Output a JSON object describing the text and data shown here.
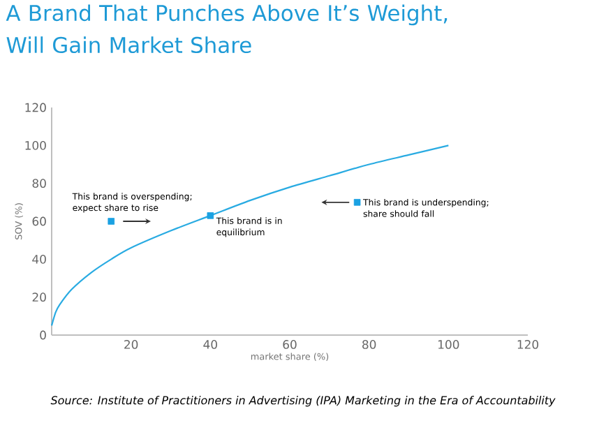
{
  "chart_data": {
    "type": "line",
    "title": "A Brand That Punches Above It’s Weight, Will Gain Market Share",
    "xlabel": "market share (%)",
    "ylabel": "SOV (%)",
    "xlim": [
      0,
      120
    ],
    "xticks": [
      20,
      40,
      60,
      80,
      100,
      120
    ],
    "ylim": [
      0,
      120
    ],
    "yticks": [
      0,
      20,
      40,
      60,
      80,
      100,
      120
    ],
    "series": [
      {
        "type": "line",
        "color": "#29abe2",
        "marker": "none",
        "x": [
          0,
          1,
          2,
          5,
          10,
          15,
          20,
          30,
          40,
          50,
          60,
          70,
          80,
          90,
          100
        ],
        "values": [
          5,
          12,
          16,
          24,
          33,
          40,
          46,
          55,
          63,
          71,
          78,
          84,
          90,
          95,
          100
        ]
      },
      {
        "type": "scatter",
        "color": "#1ba1e2",
        "marker": "square",
        "x": [
          15,
          40,
          77
        ],
        "values": [
          60,
          63,
          70
        ]
      }
    ],
    "annotations": [
      {
        "text": "This brand is overspending; expect share to rise",
        "x": 15,
        "y": 60
      },
      {
        "text": "This brand is in equilibrium",
        "x": 40,
        "y": 63
      },
      {
        "text": "This brand is underspending; share should fall",
        "x": 77,
        "y": 70
      },
      "Source: Institute of Practitioners in Advertising (IPA) Marketing in the Era of Accountability"
    ]
  }
}
